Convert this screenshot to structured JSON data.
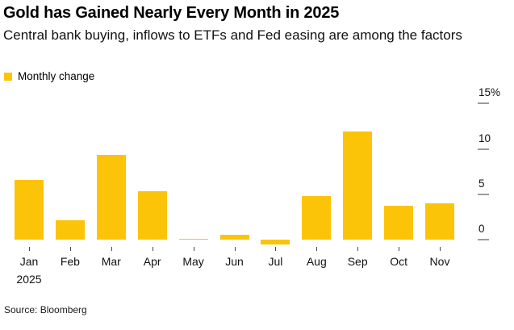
{
  "header": {
    "title": "Gold has Gained Nearly Every Month in 2025",
    "subtitle": "Central bank buying, inflows to ETFs and Fed easing are among the factors"
  },
  "legend": {
    "label": "Monthly change",
    "swatch_color": "#FCC409"
  },
  "chart_data": {
    "type": "bar",
    "title": "Gold has Gained Nearly Every Month in 2025",
    "subtitle": "Central bank buying, inflows to ETFs and Fed easing are among the factors",
    "series_name": "Monthly change",
    "categories": [
      "Jan",
      "Feb",
      "Mar",
      "Apr",
      "May",
      "Jun",
      "Jul",
      "Aug",
      "Sep",
      "Oct",
      "Nov"
    ],
    "x_axis_year_label": "2025",
    "values": [
      6.6,
      2.1,
      9.3,
      5.3,
      0.1,
      0.5,
      -0.5,
      4.8,
      11.9,
      3.7,
      4.0
    ],
    "unit": "%",
    "y_ticks": [
      {
        "value": 0,
        "label": "0"
      },
      {
        "value": 5,
        "label": "5"
      },
      {
        "value": 10,
        "label": "10"
      },
      {
        "value": 15,
        "label": "15%"
      }
    ],
    "ylim": [
      -1,
      15.5
    ],
    "bar_color": "#FCC409",
    "grid": false,
    "legend_position": "top-left",
    "axis_side": "right"
  },
  "footer": {
    "source": "Source: Bloomberg"
  }
}
